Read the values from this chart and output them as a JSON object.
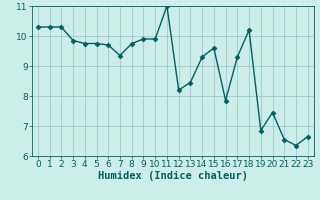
{
  "x": [
    0,
    1,
    2,
    3,
    4,
    5,
    6,
    7,
    8,
    9,
    10,
    11,
    12,
    13,
    14,
    15,
    16,
    17,
    18,
    19,
    20,
    21,
    22,
    23
  ],
  "y": [
    10.3,
    10.3,
    10.3,
    9.85,
    9.75,
    9.75,
    9.7,
    9.35,
    9.75,
    9.9,
    9.9,
    11.0,
    8.2,
    8.45,
    9.3,
    9.6,
    7.85,
    9.3,
    10.2,
    6.85,
    7.45,
    6.55,
    6.35,
    6.65
  ],
  "line_color": "#006060",
  "marker": "D",
  "marker_size": 2.5,
  "bg_color": "#cceee8",
  "grid_color": "#99cccc",
  "xlabel": "Humidex (Indice chaleur)",
  "ylim": [
    6,
    11
  ],
  "xlim": [
    -0.5,
    23.5
  ],
  "yticks": [
    6,
    7,
    8,
    9,
    10,
    11
  ],
  "xticks": [
    0,
    1,
    2,
    3,
    4,
    5,
    6,
    7,
    8,
    9,
    10,
    11,
    12,
    13,
    14,
    15,
    16,
    17,
    18,
    19,
    20,
    21,
    22,
    23
  ],
  "xlabel_fontsize": 7.5,
  "tick_fontsize": 6.5,
  "line_width": 1.0
}
